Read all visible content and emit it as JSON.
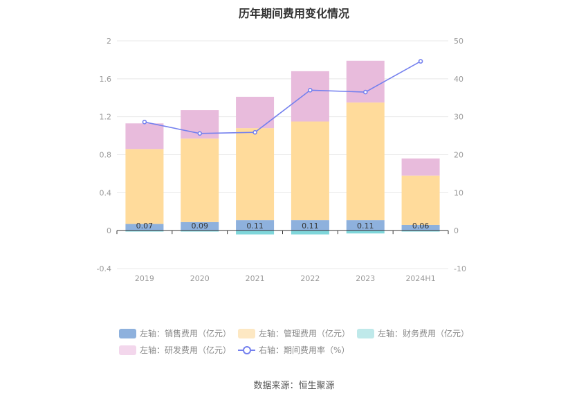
{
  "title": "历年期间费用变化情况",
  "source_text": "数据来源：恒生聚源",
  "colors": {
    "sales": "#8eb1dd",
    "management": "#ffdb9b",
    "finance": "#7fd6da",
    "rd": "#e8bbdc",
    "rate": "#7480ee",
    "grid": "#e8e8e8",
    "axis": "#333333"
  },
  "legend": [
    {
      "key": "sales",
      "label": "左轴：销售费用（亿元）",
      "kind": "bar"
    },
    {
      "key": "management",
      "label": "左轴：管理费用（亿元）",
      "kind": "bar"
    },
    {
      "key": "finance",
      "label": "左轴：财务费用（亿元）",
      "kind": "bar"
    },
    {
      "key": "rd",
      "label": "左轴：研发费用（亿元）",
      "kind": "bar"
    },
    {
      "key": "rate",
      "label": "右轴：期间费用率（%）",
      "kind": "line"
    }
  ],
  "chart_data": {
    "type": "bar",
    "stacked": true,
    "categories": [
      "2019",
      "2020",
      "2021",
      "2022",
      "2023",
      "2024H1"
    ],
    "left_axis": {
      "ylim": [
        -0.4,
        2
      ],
      "ticks": [
        "-0.4",
        "0",
        "0.4",
        "0.8",
        "1.2",
        "1.6",
        "2"
      ]
    },
    "right_axis": {
      "ylim": [
        -10,
        50
      ],
      "ticks": [
        "-10",
        "0",
        "10",
        "20",
        "30",
        "40",
        "50"
      ]
    },
    "series": [
      {
        "name": "左轴：销售费用（亿元）",
        "key": "sales",
        "axis": "left",
        "values": [
          0.07,
          0.09,
          0.11,
          0.11,
          0.11,
          0.06
        ],
        "labels": [
          "0.07",
          "0.09",
          "0.11",
          "0.11",
          "0.11",
          "0.06"
        ]
      },
      {
        "name": "左轴：管理费用（亿元）",
        "key": "management",
        "axis": "left",
        "values": [
          0.79,
          0.88,
          0.97,
          1.04,
          1.24,
          0.52
        ]
      },
      {
        "name": "左轴：财务费用（亿元）",
        "key": "finance",
        "axis": "left",
        "values": [
          -0.01,
          -0.01,
          -0.04,
          -0.04,
          -0.03,
          -0.01
        ]
      },
      {
        "name": "左轴：研发费用（亿元）",
        "key": "rd",
        "axis": "left",
        "values": [
          0.27,
          0.3,
          0.33,
          0.53,
          0.44,
          0.18
        ]
      },
      {
        "name": "右轴：期间费用率（%）",
        "key": "rate",
        "axis": "right",
        "type": "line",
        "values": [
          28.6,
          25.6,
          25.9,
          37.0,
          36.5,
          44.6
        ]
      }
    ],
    "grid": true,
    "legend_position": "bottom"
  }
}
